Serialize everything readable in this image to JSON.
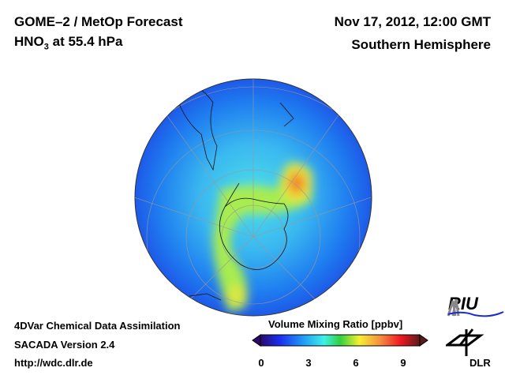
{
  "header": {
    "title": "GOME–2 / MetOp Forecast",
    "species": "HNO",
    "species_sub": "3",
    "level": " at 55.4 hPa",
    "date": "Nov 17, 2012, 12:00 GMT",
    "region": "Southern Hemisphere"
  },
  "footer": {
    "line1": "4DVar Chemical Data Assimilation",
    "line2": "SACADA Version 2.4",
    "line3": "http://wdc.dlr.de"
  },
  "colorbar": {
    "title": "Volume Mixing Ratio [ppbv]",
    "ticks": [
      "0",
      "3",
      "6",
      "9"
    ],
    "range": [
      0,
      10
    ],
    "colors": [
      "#2a0a6a",
      "#1a2cf0",
      "#21a3f5",
      "#3ef0e8",
      "#30d040",
      "#f5f030",
      "#f59040",
      "#f01820",
      "#5a1a1a"
    ]
  },
  "logos": {
    "riu": "RIU",
    "dlr": "DLR"
  }
}
